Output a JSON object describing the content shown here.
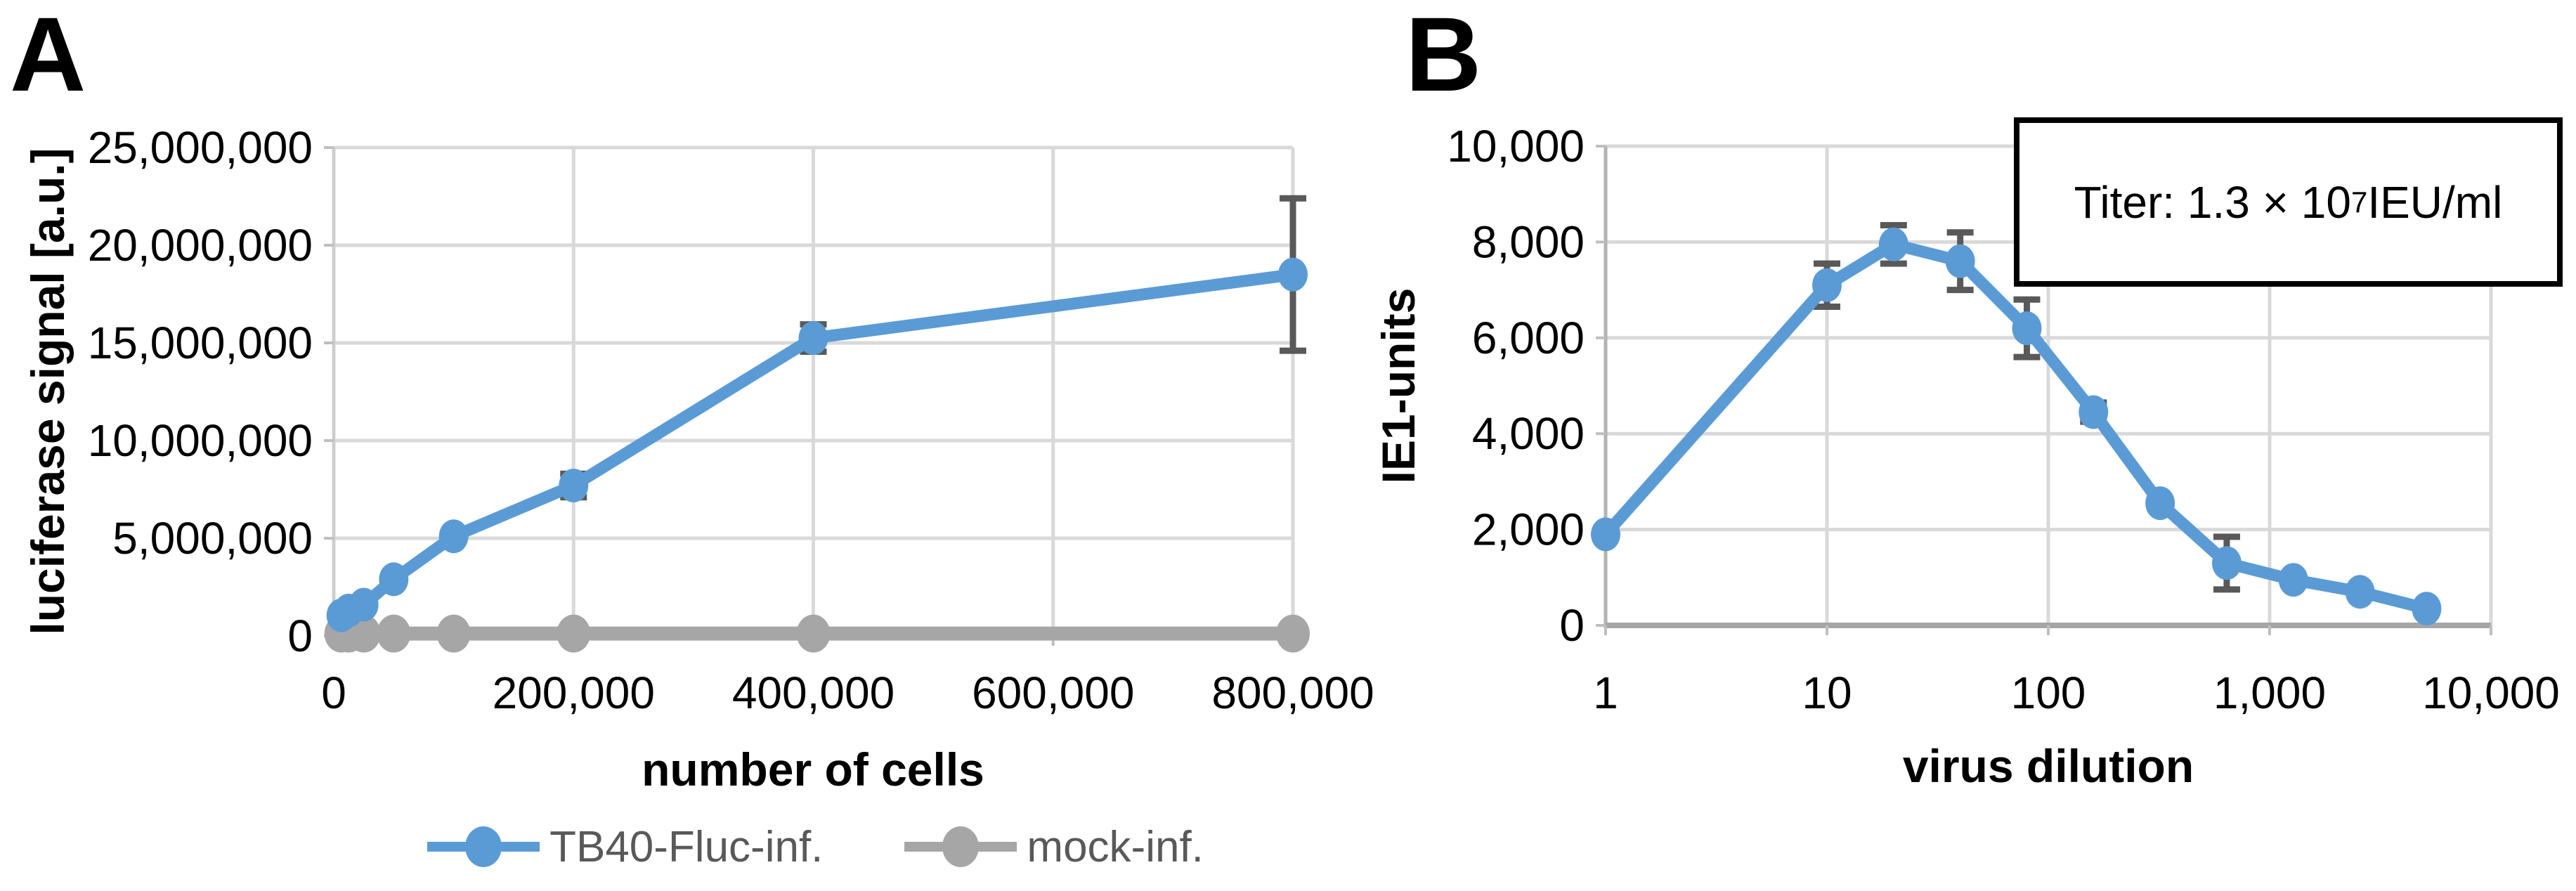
{
  "figure": {
    "panels": [
      {
        "letter": "A"
      },
      {
        "letter": "B"
      }
    ]
  },
  "colors": {
    "series_blue": "#5B9BD5",
    "series_gray": "#A6A6A6",
    "gridline": "#D9D9D9",
    "axis_line": "#BFBFBF",
    "error_bar": "#595959",
    "legend_text": "#595959",
    "tick_text": "#000000"
  },
  "legend": {
    "items": [
      {
        "label": "TB40-Fluc-inf.",
        "color": "#5B9BD5"
      },
      {
        "label": "mock-inf.",
        "color": "#A6A6A6"
      }
    ]
  },
  "annotation": {
    "prefix": "Titer: 1.3 × 10",
    "exponent": "7",
    "suffix": " IEU/ml"
  },
  "chart_data": [
    {
      "id": "A",
      "type": "line",
      "title": "",
      "xlabel": "number of cells",
      "ylabel": "luciferase signal [a.u.]",
      "xscale": "linear",
      "xlim": [
        0,
        800000
      ],
      "ylim": [
        0,
        25000000
      ],
      "grid": true,
      "legend_position": "bottom",
      "xticks": [
        {
          "v": 0,
          "label": "0"
        },
        {
          "v": 200000,
          "label": "200,000"
        },
        {
          "v": 400000,
          "label": "400,000"
        },
        {
          "v": 600000,
          "label": "600,000"
        },
        {
          "v": 800000,
          "label": "800,000"
        }
      ],
      "yticks": [
        {
          "v": 0,
          "label": "0"
        },
        {
          "v": 5000000,
          "label": "5,000,000"
        },
        {
          "v": 10000000,
          "label": "10,000,000"
        },
        {
          "v": 15000000,
          "label": "15,000,000"
        },
        {
          "v": 20000000,
          "label": "20,000,000"
        },
        {
          "v": 25000000,
          "label": "25,000,000"
        }
      ],
      "series": [
        {
          "name": "TB40-Fluc-inf.",
          "color": "#5B9BD5",
          "x": [
            6250,
            12500,
            25000,
            50000,
            100000,
            200000,
            400000,
            800000
          ],
          "y": [
            1050000,
            1300000,
            1600000,
            2900000,
            5100000,
            7700000,
            15250000,
            18500000
          ],
          "yerr": [
            0,
            0,
            0,
            0,
            0,
            600000,
            700000,
            3900000
          ]
        },
        {
          "name": "mock-inf.",
          "color": "#A6A6A6",
          "x": [
            6250,
            12500,
            25000,
            50000,
            100000,
            200000,
            400000,
            800000
          ],
          "y": [
            120000,
            120000,
            120000,
            120000,
            120000,
            120000,
            120000,
            120000
          ],
          "yerr": [
            0,
            0,
            0,
            0,
            0,
            0,
            0,
            0
          ]
        }
      ]
    },
    {
      "id": "B",
      "type": "line",
      "title": "",
      "xlabel": "virus dilution",
      "ylabel": "IE1-units",
      "xscale": "log",
      "xlim": [
        1,
        10000
      ],
      "ylim": [
        0,
        10000
      ],
      "grid": true,
      "annotation": "Titer: 1.3 × 10^7 IEU/ml",
      "xticks": [
        {
          "v": 1,
          "label": "1"
        },
        {
          "v": 10,
          "label": "10"
        },
        {
          "v": 100,
          "label": "100"
        },
        {
          "v": 1000,
          "label": "1,000"
        },
        {
          "v": 10000,
          "label": "10,000"
        }
      ],
      "yticks": [
        {
          "v": 0,
          "label": "0"
        },
        {
          "v": 2000,
          "label": "2,000"
        },
        {
          "v": 4000,
          "label": "4,000"
        },
        {
          "v": 6000,
          "label": "6,000"
        },
        {
          "v": 8000,
          "label": "8,000"
        },
        {
          "v": 10000,
          "label": "10,000"
        }
      ],
      "series": [
        {
          "name": "TB40-Fluc-inf.",
          "color": "#5B9BD5",
          "x": [
            1,
            10,
            20,
            40,
            80,
            160,
            320,
            640,
            1280,
            2560,
            5120
          ],
          "y": [
            1900,
            7100,
            7950,
            7600,
            6200,
            4450,
            2550,
            1300,
            950,
            700,
            350
          ],
          "yerr": [
            0,
            450,
            400,
            600,
            600,
            200,
            0,
            550,
            0,
            0,
            0
          ]
        }
      ]
    }
  ]
}
